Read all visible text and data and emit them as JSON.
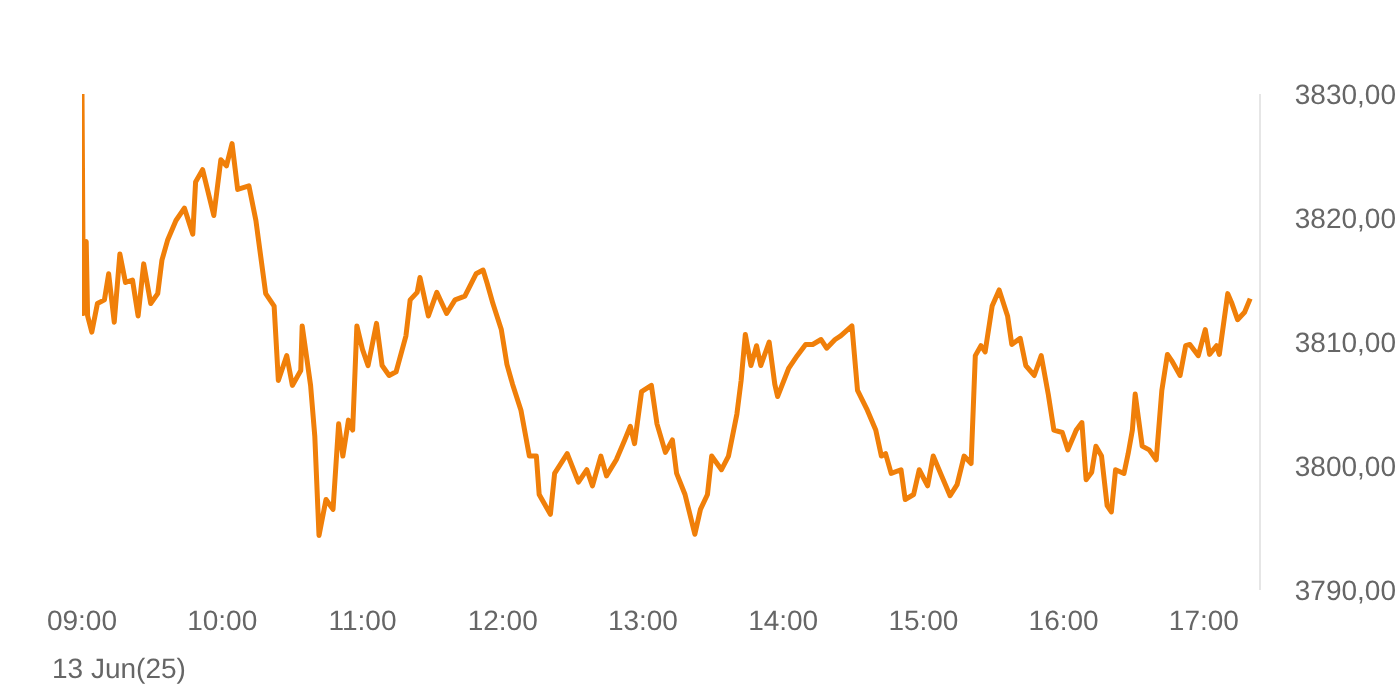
{
  "chart_data": {
    "type": "line",
    "xlabel": "13 Jun(25)",
    "xlim": [
      9,
      17.4
    ],
    "xticks": [
      {
        "value": 9,
        "label": "09:00"
      },
      {
        "value": 10,
        "label": "10:00"
      },
      {
        "value": 11,
        "label": "11:00"
      },
      {
        "value": 12,
        "label": "12:00"
      },
      {
        "value": 13,
        "label": "13:00"
      },
      {
        "value": 14,
        "label": "14:00"
      },
      {
        "value": 15,
        "label": "15:00"
      },
      {
        "value": 16,
        "label": "16:00"
      },
      {
        "value": 17,
        "label": "17:00"
      }
    ],
    "ylim": [
      3790,
      3830
    ],
    "yticks": [
      {
        "value": 3790,
        "label": "3790,00"
      },
      {
        "value": 3800,
        "label": "3800,00"
      },
      {
        "value": 3810,
        "label": "3810,00"
      },
      {
        "value": 3820,
        "label": "3820,00"
      },
      {
        "value": 3830,
        "label": "3830,00"
      }
    ],
    "marker": "none",
    "line_style": "solid",
    "series": [
      {
        "color": "#f07f09",
        "x": [
          9.0,
          9.01,
          9.03,
          9.04,
          9.07,
          9.11,
          9.16,
          9.19,
          9.23,
          9.27,
          9.31,
          9.36,
          9.4,
          9.44,
          9.49,
          9.54,
          9.57,
          9.61,
          9.67,
          9.73,
          9.79,
          9.81,
          9.86,
          9.94,
          9.99,
          10.03,
          10.07,
          10.11,
          10.19,
          10.24,
          10.31,
          10.37,
          10.4,
          10.46,
          10.5,
          10.56,
          10.57,
          10.63,
          10.66,
          10.69,
          10.74,
          10.79,
          10.83,
          10.86,
          10.9,
          10.93,
          10.96,
          11.0,
          11.04,
          11.1,
          11.14,
          11.19,
          11.24,
          11.31,
          11.34,
          11.39,
          11.41,
          11.47,
          11.53,
          11.6,
          11.66,
          11.73,
          11.81,
          11.86,
          11.89,
          11.93,
          11.99,
          12.03,
          12.07,
          12.13,
          12.19,
          12.24,
          12.26,
          12.34,
          12.37,
          12.46,
          12.54,
          12.6,
          12.64,
          12.7,
          12.74,
          12.81,
          12.87,
          12.91,
          12.94,
          12.99,
          13.06,
          13.1,
          13.16,
          13.21,
          13.24,
          13.3,
          13.37,
          13.41,
          13.46,
          13.49,
          13.56,
          13.61,
          13.67,
          13.7,
          13.73,
          13.77,
          13.81,
          13.84,
          13.9,
          13.94,
          13.96,
          14.04,
          14.1,
          14.16,
          14.21,
          14.27,
          14.31,
          14.37,
          14.41,
          14.49,
          14.53,
          14.6,
          14.66,
          14.7,
          14.73,
          14.77,
          14.84,
          14.87,
          14.93,
          14.97,
          15.03,
          15.07,
          15.13,
          15.19,
          15.24,
          15.29,
          15.34,
          15.37,
          15.41,
          15.44,
          15.49,
          15.54,
          15.6,
          15.63,
          15.69,
          15.73,
          15.79,
          15.84,
          15.89,
          15.93,
          15.99,
          16.03,
          16.09,
          16.13,
          16.16,
          16.2,
          16.23,
          16.27,
          16.31,
          16.34,
          16.37,
          16.43,
          16.46,
          16.49,
          16.51,
          16.56,
          16.61,
          16.66,
          16.7,
          16.74,
          16.77,
          16.83,
          16.87,
          16.9,
          16.96,
          17.01,
          17.04,
          17.09,
          17.11,
          17.17,
          17.2,
          17.24,
          17.29,
          17.33
        ],
        "values": [
          3830.0,
          3812.3,
          3818.1,
          3812.1,
          3810.8,
          3813.1,
          3813.4,
          3815.5,
          3811.6,
          3817.1,
          3814.8,
          3815.0,
          3812.1,
          3816.3,
          3813.1,
          3813.9,
          3816.6,
          3818.2,
          3819.8,
          3820.8,
          3818.7,
          3822.9,
          3823.9,
          3820.2,
          3824.7,
          3824.2,
          3826.0,
          3822.3,
          3822.6,
          3819.8,
          3813.9,
          3812.9,
          3806.9,
          3808.9,
          3806.5,
          3807.7,
          3811.3,
          3806.5,
          3802.4,
          3794.4,
          3797.3,
          3796.5,
          3803.4,
          3800.8,
          3803.7,
          3802.9,
          3811.3,
          3809.4,
          3808.1,
          3811.5,
          3808.1,
          3807.3,
          3807.6,
          3810.5,
          3813.4,
          3814.0,
          3815.2,
          3812.1,
          3814.0,
          3812.3,
          3813.4,
          3813.7,
          3815.5,
          3815.8,
          3814.7,
          3813.1,
          3811.0,
          3808.2,
          3806.6,
          3804.5,
          3800.8,
          3800.8,
          3797.7,
          3796.1,
          3799.4,
          3801.0,
          3798.7,
          3799.7,
          3798.4,
          3800.8,
          3799.2,
          3800.5,
          3802.1,
          3803.2,
          3801.8,
          3806.0,
          3806.5,
          3803.4,
          3801.1,
          3802.1,
          3799.4,
          3797.7,
          3794.5,
          3796.5,
          3797.7,
          3800.8,
          3799.7,
          3800.8,
          3804.2,
          3806.9,
          3810.6,
          3808.1,
          3809.7,
          3808.1,
          3810.0,
          3806.6,
          3805.6,
          3807.9,
          3808.9,
          3809.8,
          3809.8,
          3810.2,
          3809.5,
          3810.2,
          3810.5,
          3811.3,
          3806.1,
          3804.5,
          3802.9,
          3800.8,
          3801.0,
          3799.4,
          3799.7,
          3797.3,
          3797.7,
          3799.7,
          3798.4,
          3800.8,
          3799.2,
          3797.6,
          3798.5,
          3800.8,
          3800.2,
          3808.9,
          3809.7,
          3809.2,
          3812.9,
          3814.2,
          3812.1,
          3809.8,
          3810.3,
          3808.1,
          3807.3,
          3808.9,
          3805.8,
          3802.9,
          3802.7,
          3801.3,
          3802.9,
          3803.5,
          3798.9,
          3799.5,
          3801.6,
          3800.8,
          3796.8,
          3796.3,
          3799.7,
          3799.4,
          3801.0,
          3802.9,
          3805.8,
          3801.6,
          3801.3,
          3800.5,
          3806.1,
          3809.0,
          3808.5,
          3807.3,
          3809.7,
          3809.8,
          3808.9,
          3811.0,
          3809.0,
          3809.7,
          3809.0,
          3813.9,
          3813.1,
          3811.8,
          3812.4,
          3813.5
        ]
      }
    ]
  }
}
